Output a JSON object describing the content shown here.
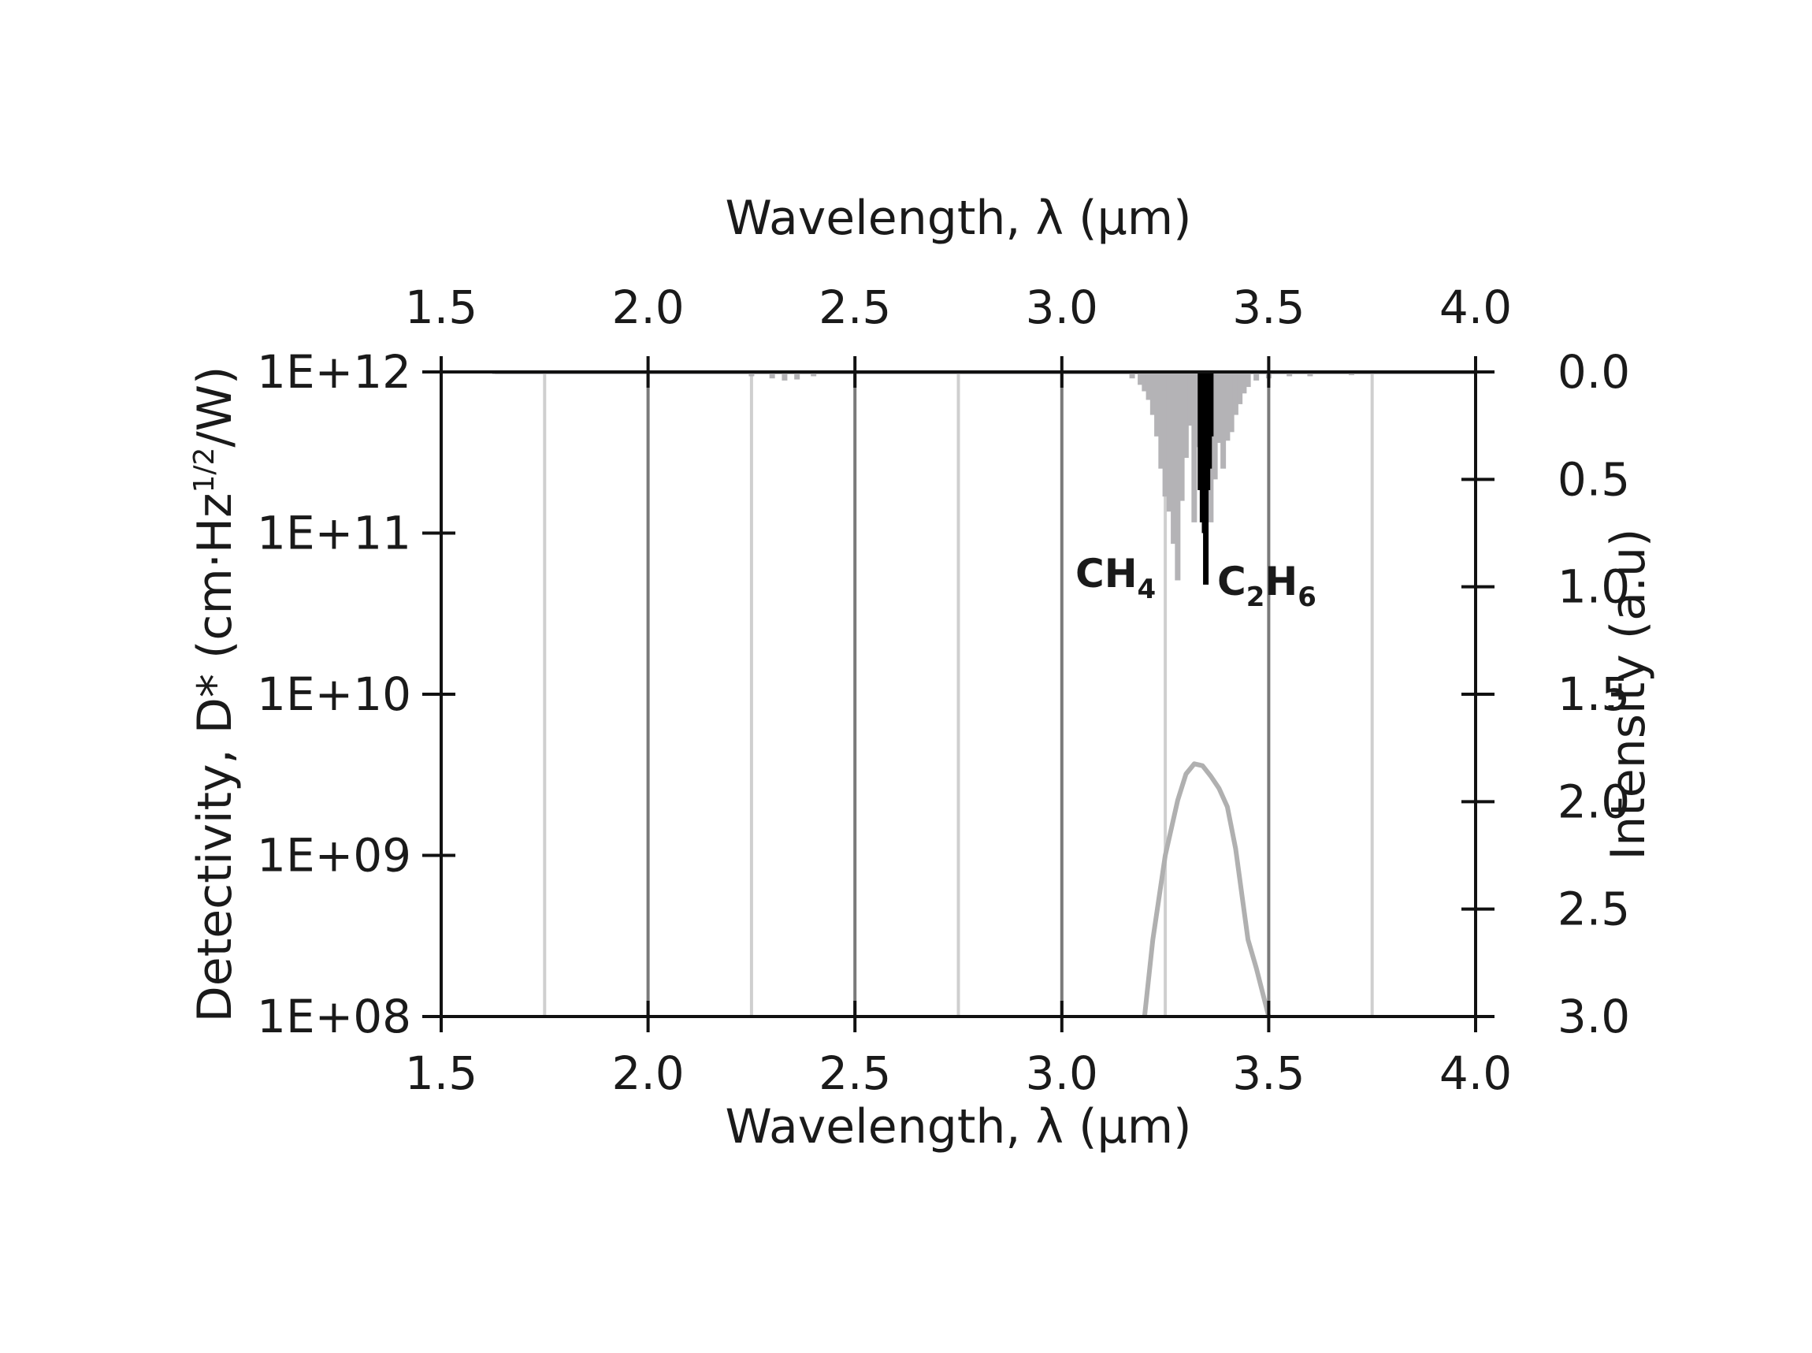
{
  "chart_data": {
    "type": "line",
    "x_top_label": "Wavelength, λ (μm)",
    "x_bottom_label": "Wavelength, λ (μm)",
    "y_left_label": {
      "main": "Detectivity, D* (cm·Hz",
      "sup": "1/2",
      "tail": "/W)"
    },
    "y_right_label": "Intensity (a.u)",
    "x_range": [
      1.5,
      4.0
    ],
    "x_ticks": [
      "1.5",
      "2.0",
      "2.5",
      "3.0",
      "3.5",
      "4.0"
    ],
    "x_tick_values": [
      1.5,
      2.0,
      2.5,
      3.0,
      3.5,
      4.0
    ],
    "y_left_scale": "log",
    "y_left_range": [
      100000000.0,
      1000000000000.0
    ],
    "y_left_ticks": [
      "1E+12",
      "1E+11",
      "1E+10",
      "1E+09",
      "1E+08"
    ],
    "y_left_tick_values": [
      1000000000000.0,
      100000000000.0,
      10000000000.0,
      1000000000.0,
      100000000.0
    ],
    "y_right_range": [
      0.0,
      3.0
    ],
    "y_right_inverted": true,
    "y_right_ticks": [
      "0.0",
      "0.5",
      "1.0",
      "1.5",
      "2.0",
      "2.5",
      "3.0"
    ],
    "y_right_tick_values": [
      0.0,
      0.5,
      1.0,
      1.5,
      2.0,
      2.5,
      3.0
    ],
    "grid_x_major": [
      2.0,
      2.5,
      3.0,
      3.5
    ],
    "grid_x_minor": [
      1.75,
      2.25,
      2.75,
      3.25,
      3.75
    ],
    "colors": {
      "axis": "#111111",
      "major_grid": "#7a7a7a",
      "minor_grid": "#cfcfcf",
      "ch4": "#b4b3b6",
      "c2h6": "#000000",
      "detectivity": "#b0b0b0"
    },
    "series": [
      {
        "name": "CH4",
        "label_main": "CH",
        "label_sub": "4",
        "axis": "right",
        "style": "absorption-bars",
        "x": [
          1.63,
          2.2,
          2.25,
          2.3,
          2.33,
          2.36,
          2.4,
          2.45,
          3.15,
          3.17,
          3.19,
          3.2,
          3.21,
          3.22,
          3.23,
          3.24,
          3.25,
          3.26,
          3.27,
          3.28,
          3.29,
          3.3,
          3.31,
          3.32,
          3.33,
          3.36,
          3.37,
          3.38,
          3.39,
          3.4,
          3.41,
          3.42,
          3.43,
          3.44,
          3.45,
          3.47,
          3.5,
          3.55,
          3.6,
          3.7,
          3.85,
          3.95
        ],
        "values": [
          0.01,
          0.01,
          0.02,
          0.03,
          0.04,
          0.035,
          0.02,
          0.01,
          0.01,
          0.03,
          0.06,
          0.09,
          0.13,
          0.2,
          0.3,
          0.45,
          0.58,
          0.65,
          0.8,
          0.97,
          0.6,
          0.4,
          0.25,
          0.7,
          0.35,
          0.7,
          0.5,
          0.33,
          0.45,
          0.32,
          0.28,
          0.2,
          0.15,
          0.1,
          0.07,
          0.04,
          0.03,
          0.02,
          0.02,
          0.015,
          0.01,
          0.01
        ]
      },
      {
        "name": "C2H6",
        "label_main": "C",
        "label_sub1": "2",
        "label_mid": "H",
        "label_sub2": "6",
        "axis": "right",
        "style": "absorption-bars",
        "x": [
          3.335,
          3.34,
          3.345,
          3.348,
          3.352,
          3.356,
          3.36
        ],
        "values": [
          0.55,
          0.7,
          0.75,
          0.99,
          0.55,
          0.45,
          0.3
        ]
      },
      {
        "name": "Detectivity",
        "axis": "left",
        "style": "line",
        "x": [
          3.2,
          3.22,
          3.25,
          3.28,
          3.3,
          3.32,
          3.34,
          3.36,
          3.38,
          3.4,
          3.42,
          3.45,
          3.47,
          3.5
        ],
        "values": [
          100000000.0,
          300000000.0,
          1000000000.0,
          2200000000.0,
          3200000000.0,
          3700000000.0,
          3600000000.0,
          3100000000.0,
          2600000000.0,
          2000000000.0,
          1100000000.0,
          300000000.0,
          200000000.0,
          100000000.0
        ]
      }
    ]
  }
}
